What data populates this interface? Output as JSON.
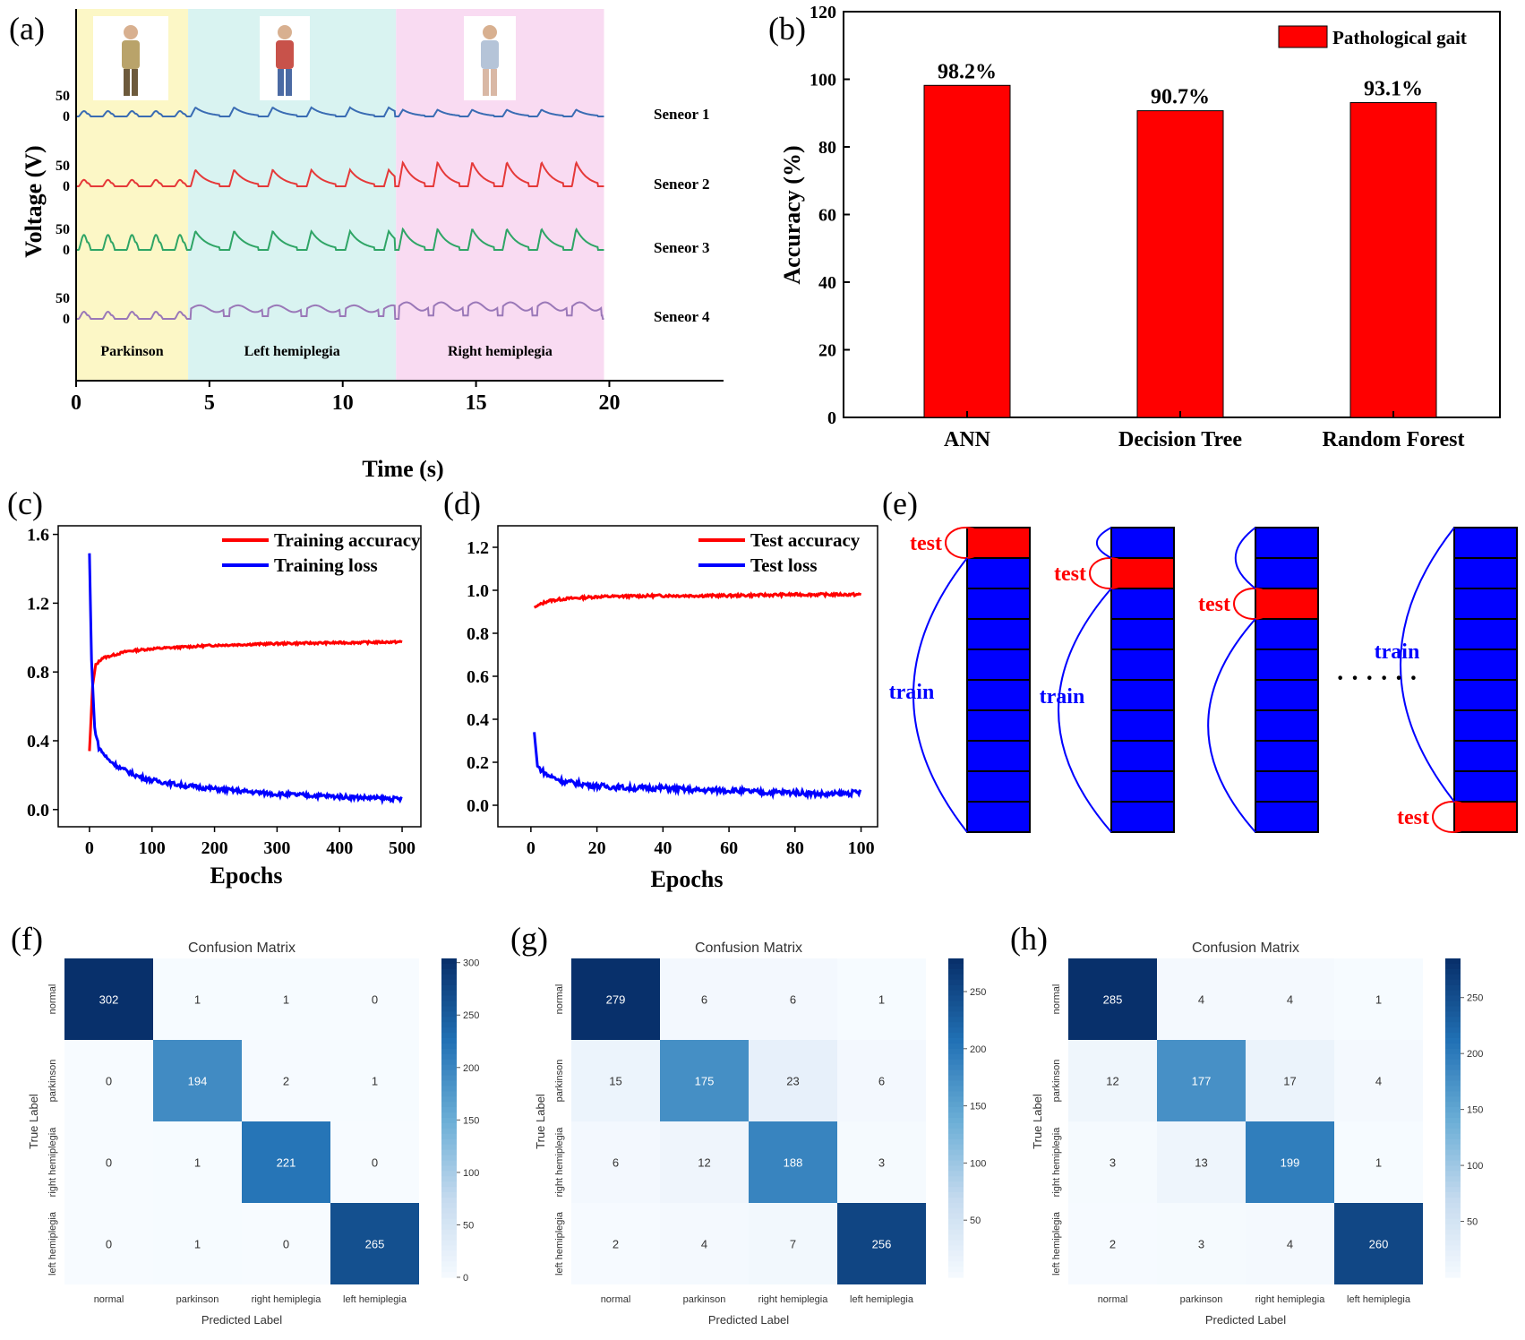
{
  "panels": {
    "a": {
      "label": "(a)",
      "chart_data": {
        "type": "line",
        "xlabel": "Time (s)",
        "ylabel": "Voltage (V)",
        "xlim": [
          0,
          22
        ],
        "xticks": [
          "0",
          "5",
          "10",
          "15",
          "20"
        ],
        "ytick_labels": [
          "50",
          "0"
        ],
        "regions": [
          {
            "name": "Parkinson",
            "x": [
              0,
              4.2
            ],
            "color": "#fcf7c6"
          },
          {
            "name": "Left hemiplegia",
            "x": [
              4.2,
              12
            ],
            "color": "#d9f3f1"
          },
          {
            "name": "Right hemiplegia",
            "x": [
              12,
              19.8
            ],
            "color": "#f9dbf2"
          }
        ],
        "series": [
          {
            "name": "Seneor 1",
            "color": "#3a6cb3",
            "peaks": [
              15,
              24,
              18
            ]
          },
          {
            "name": "Seneor 2",
            "color": "#e53939",
            "peaks": [
              18,
              44,
              64
            ]
          },
          {
            "name": "Seneor 3",
            "color": "#2fa566",
            "peaks": [
              42,
              50,
              56
            ]
          },
          {
            "name": "Seneor 4",
            "color": "#9a78b8",
            "peaks": [
              20,
              36,
              44
            ]
          }
        ]
      }
    },
    "b": {
      "label": "(b)",
      "chart_data": {
        "type": "bar",
        "categories": [
          "ANN",
          "Decision Tree",
          "Random Forest"
        ],
        "series": [
          {
            "name": "Pathological gait",
            "values": [
              98.2,
              90.7,
              93.1
            ],
            "color": "#ff0000"
          }
        ],
        "value_labels": [
          "98.2%",
          "90.7%",
          "93.1%"
        ],
        "ylabel": "Accuracy (%)",
        "ylim": [
          0,
          120
        ],
        "yticks": [
          0,
          20,
          40,
          60,
          80,
          100,
          120
        ],
        "legend": "top-right"
      }
    },
    "c": {
      "label": "(c)",
      "chart_data": {
        "type": "line",
        "xlabel": "Epochs",
        "xlim": [
          -50,
          530
        ],
        "ylim": [
          -0.1,
          1.65
        ],
        "xticks": [
          0,
          100,
          200,
          300,
          400,
          500
        ],
        "yticks": [
          0.0,
          0.4,
          0.8,
          1.2,
          1.6
        ],
        "legend": "top-right",
        "series": [
          {
            "name": "Training accuracy",
            "color": "#ff0000",
            "x": [
              0,
              5,
              10,
              20,
              40,
              60,
              100,
              150,
              200,
              300,
              400,
              500
            ],
            "y": [
              0.34,
              0.72,
              0.84,
              0.88,
              0.9,
              0.92,
              0.935,
              0.945,
              0.955,
              0.965,
              0.97,
              0.975
            ]
          },
          {
            "name": "Training loss",
            "color": "#0000ff",
            "x": [
              0,
              3,
              8,
              15,
              30,
              50,
              80,
              100,
              150,
              200,
              300,
              400,
              500
            ],
            "y": [
              1.49,
              0.9,
              0.48,
              0.36,
              0.29,
              0.24,
              0.19,
              0.17,
              0.14,
              0.12,
              0.09,
              0.075,
              0.06
            ]
          }
        ]
      }
    },
    "d": {
      "label": "(d)",
      "chart_data": {
        "type": "line",
        "xlabel": "Epochs",
        "xlim": [
          -10,
          105
        ],
        "ylim": [
          -0.1,
          1.3
        ],
        "xticks": [
          0,
          20,
          40,
          60,
          80,
          100
        ],
        "yticks": [
          0.0,
          0.2,
          0.4,
          0.6,
          0.8,
          1.0,
          1.2
        ],
        "legend": "top-right",
        "series": [
          {
            "name": "Test accuracy",
            "color": "#ff0000",
            "x": [
              1,
              5,
              10,
              20,
              40,
              60,
              80,
              100
            ],
            "y": [
              0.92,
              0.95,
              0.96,
              0.97,
              0.975,
              0.975,
              0.98,
              0.98
            ]
          },
          {
            "name": "Test loss",
            "color": "#0000ff",
            "x": [
              1,
              2,
              5,
              10,
              20,
              30,
              40,
              50,
              60,
              70,
              80,
              90,
              100
            ],
            "y": [
              0.34,
              0.18,
              0.14,
              0.11,
              0.09,
              0.08,
              0.08,
              0.07,
              0.07,
              0.06,
              0.06,
              0.05,
              0.06
            ]
          }
        ]
      }
    },
    "e": {
      "label": "(e)",
      "test_label": "test",
      "train_label": "train",
      "dots": "· · · · · ·",
      "segments": 10,
      "test_positions": [
        0,
        1,
        2,
        9
      ],
      "fold_color": "#0000ff",
      "test_color": "#ff0000"
    },
    "f": {
      "label": "(f)",
      "chart_data": {
        "type": "heatmap",
        "title": "Confusion Matrix",
        "xlabel": "Predicted Label",
        "ylabel": "True Label",
        "classes": [
          "normal",
          "parkinson",
          "right hemiplegia",
          "left hemiplegia"
        ],
        "matrix": [
          [
            302,
            1,
            1,
            0
          ],
          [
            0,
            194,
            2,
            1
          ],
          [
            0,
            1,
            221,
            0
          ],
          [
            0,
            1,
            0,
            265
          ]
        ],
        "vmax": 302,
        "colorbar_ticks": [
          0,
          50,
          100,
          150,
          200,
          250,
          300
        ]
      }
    },
    "g": {
      "label": "(g)",
      "chart_data": {
        "type": "heatmap",
        "title": "Confusion Matrix",
        "xlabel": "Predicted Label",
        "ylabel": "True Label",
        "classes": [
          "normal",
          "parkinson",
          "right hemiplegia",
          "left hemiplegia"
        ],
        "matrix": [
          [
            279,
            6,
            6,
            1
          ],
          [
            15,
            175,
            23,
            6
          ],
          [
            6,
            12,
            188,
            3
          ],
          [
            2,
            4,
            7,
            256
          ]
        ],
        "vmax": 279,
        "colorbar_ticks": [
          50,
          100,
          150,
          200,
          250
        ]
      }
    },
    "h": {
      "label": "(h)",
      "chart_data": {
        "type": "heatmap",
        "title": "Confusion Matrix",
        "xlabel": "Predicted Label",
        "ylabel": "True Label",
        "classes": [
          "normal",
          "parkinson",
          "right hemiplegia",
          "left hemiplegia"
        ],
        "matrix": [
          [
            285,
            4,
            4,
            1
          ],
          [
            12,
            177,
            17,
            4
          ],
          [
            3,
            13,
            199,
            1
          ],
          [
            2,
            3,
            4,
            260
          ]
        ],
        "vmax": 285,
        "colorbar_ticks": [
          50,
          100,
          150,
          200,
          250
        ]
      }
    }
  }
}
